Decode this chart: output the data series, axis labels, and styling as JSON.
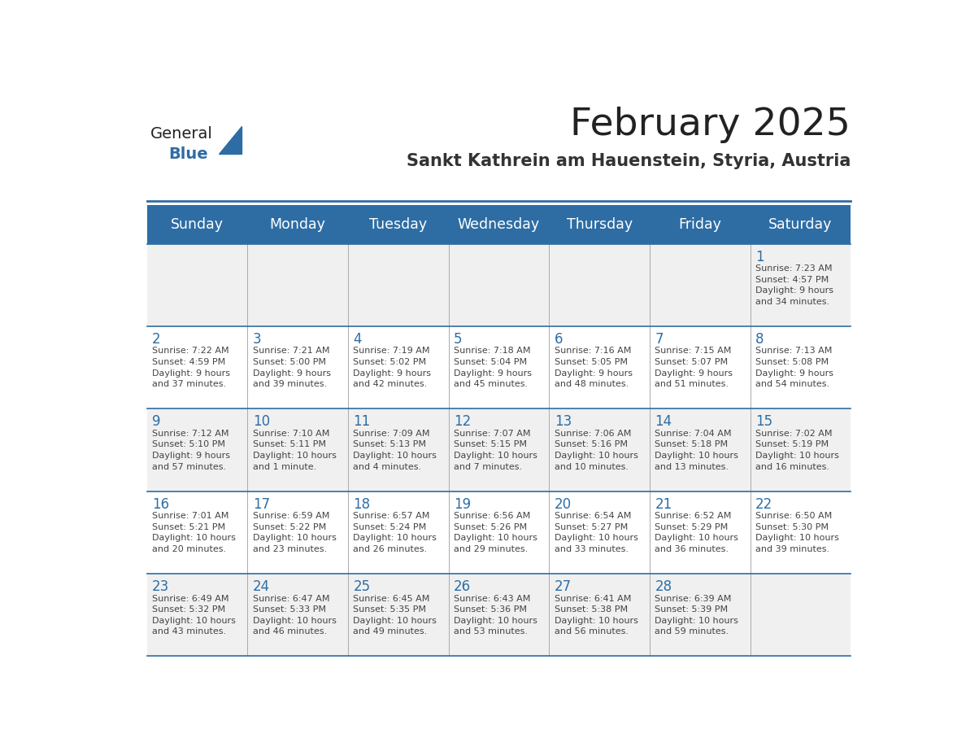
{
  "title": "February 2025",
  "subtitle": "Sankt Kathrein am Hauenstein, Styria, Austria",
  "header_bg": "#2E6DA4",
  "header_text_color": "#FFFFFF",
  "cell_bg_light": "#F0F0F0",
  "cell_bg_white": "#FFFFFF",
  "day_number_color": "#2E6DA4",
  "cell_text_color": "#444444",
  "days_of_week": [
    "Sunday",
    "Monday",
    "Tuesday",
    "Wednesday",
    "Thursday",
    "Friday",
    "Saturday"
  ],
  "title_color": "#222222",
  "subtitle_color": "#333333",
  "logo_general_color": "#222222",
  "logo_blue_color": "#2E6DA4",
  "divider_color": "#AAAAAA",
  "border_color": "#2E6DA4",
  "calendar_data": [
    [
      null,
      null,
      null,
      null,
      null,
      null,
      {
        "day": "1",
        "sunrise": "7:23 AM",
        "sunset": "4:57 PM",
        "daylight": "9 hours\nand 34 minutes."
      }
    ],
    [
      {
        "day": "2",
        "sunrise": "7:22 AM",
        "sunset": "4:59 PM",
        "daylight": "9 hours\nand 37 minutes."
      },
      {
        "day": "3",
        "sunrise": "7:21 AM",
        "sunset": "5:00 PM",
        "daylight": "9 hours\nand 39 minutes."
      },
      {
        "day": "4",
        "sunrise": "7:19 AM",
        "sunset": "5:02 PM",
        "daylight": "9 hours\nand 42 minutes."
      },
      {
        "day": "5",
        "sunrise": "7:18 AM",
        "sunset": "5:04 PM",
        "daylight": "9 hours\nand 45 minutes."
      },
      {
        "day": "6",
        "sunrise": "7:16 AM",
        "sunset": "5:05 PM",
        "daylight": "9 hours\nand 48 minutes."
      },
      {
        "day": "7",
        "sunrise": "7:15 AM",
        "sunset": "5:07 PM",
        "daylight": "9 hours\nand 51 minutes."
      },
      {
        "day": "8",
        "sunrise": "7:13 AM",
        "sunset": "5:08 PM",
        "daylight": "9 hours\nand 54 minutes."
      }
    ],
    [
      {
        "day": "9",
        "sunrise": "7:12 AM",
        "sunset": "5:10 PM",
        "daylight": "9 hours\nand 57 minutes."
      },
      {
        "day": "10",
        "sunrise": "7:10 AM",
        "sunset": "5:11 PM",
        "daylight": "10 hours\nand 1 minute."
      },
      {
        "day": "11",
        "sunrise": "7:09 AM",
        "sunset": "5:13 PM",
        "daylight": "10 hours\nand 4 minutes."
      },
      {
        "day": "12",
        "sunrise": "7:07 AM",
        "sunset": "5:15 PM",
        "daylight": "10 hours\nand 7 minutes."
      },
      {
        "day": "13",
        "sunrise": "7:06 AM",
        "sunset": "5:16 PM",
        "daylight": "10 hours\nand 10 minutes."
      },
      {
        "day": "14",
        "sunrise": "7:04 AM",
        "sunset": "5:18 PM",
        "daylight": "10 hours\nand 13 minutes."
      },
      {
        "day": "15",
        "sunrise": "7:02 AM",
        "sunset": "5:19 PM",
        "daylight": "10 hours\nand 16 minutes."
      }
    ],
    [
      {
        "day": "16",
        "sunrise": "7:01 AM",
        "sunset": "5:21 PM",
        "daylight": "10 hours\nand 20 minutes."
      },
      {
        "day": "17",
        "sunrise": "6:59 AM",
        "sunset": "5:22 PM",
        "daylight": "10 hours\nand 23 minutes."
      },
      {
        "day": "18",
        "sunrise": "6:57 AM",
        "sunset": "5:24 PM",
        "daylight": "10 hours\nand 26 minutes."
      },
      {
        "day": "19",
        "sunrise": "6:56 AM",
        "sunset": "5:26 PM",
        "daylight": "10 hours\nand 29 minutes."
      },
      {
        "day": "20",
        "sunrise": "6:54 AM",
        "sunset": "5:27 PM",
        "daylight": "10 hours\nand 33 minutes."
      },
      {
        "day": "21",
        "sunrise": "6:52 AM",
        "sunset": "5:29 PM",
        "daylight": "10 hours\nand 36 minutes."
      },
      {
        "day": "22",
        "sunrise": "6:50 AM",
        "sunset": "5:30 PM",
        "daylight": "10 hours\nand 39 minutes."
      }
    ],
    [
      {
        "day": "23",
        "sunrise": "6:49 AM",
        "sunset": "5:32 PM",
        "daylight": "10 hours\nand 43 minutes."
      },
      {
        "day": "24",
        "sunrise": "6:47 AM",
        "sunset": "5:33 PM",
        "daylight": "10 hours\nand 46 minutes."
      },
      {
        "day": "25",
        "sunrise": "6:45 AM",
        "sunset": "5:35 PM",
        "daylight": "10 hours\nand 49 minutes."
      },
      {
        "day": "26",
        "sunrise": "6:43 AM",
        "sunset": "5:36 PM",
        "daylight": "10 hours\nand 53 minutes."
      },
      {
        "day": "27",
        "sunrise": "6:41 AM",
        "sunset": "5:38 PM",
        "daylight": "10 hours\nand 56 minutes."
      },
      {
        "day": "28",
        "sunrise": "6:39 AM",
        "sunset": "5:39 PM",
        "daylight": "10 hours\nand 59 minutes."
      },
      null
    ]
  ]
}
